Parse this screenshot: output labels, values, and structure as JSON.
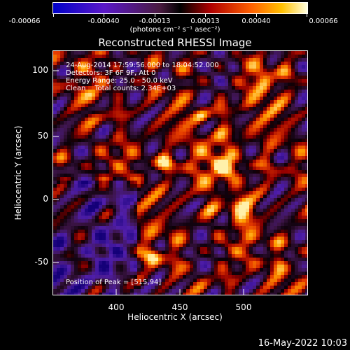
{
  "colorbar": {
    "ticks": [
      "-0.00066",
      "-0.00040",
      "-0.00013",
      "0.00013",
      "0.00040",
      "0.00066"
    ],
    "unit": "(photons cm⁻² s⁻¹ asec⁻²)"
  },
  "title": "Reconstructed RHESSI Image",
  "info": {
    "line1": "24-Aug-2014 17:59:56.000 to 18:04:52.000",
    "line2": "Detectors: 3F 6F 9F, Att 0",
    "line3": "Energy Range: 25.0 - 50.0 keV",
    "line4": "Clean    Total counts: 2.34E+03"
  },
  "peak": "Position of Peak = [515,94]",
  "axes": {
    "xlabel": "Heliocentric X (arcsec)",
    "ylabel": "Heliocentric Y (arcsec)",
    "xticks": [
      "400",
      "450",
      "500"
    ],
    "yticks": [
      "100",
      "50",
      "0",
      "-50"
    ]
  },
  "date": "16-May-2022 10:03",
  "colors": {
    "bg": "#000000",
    "text": "#ffffff"
  }
}
